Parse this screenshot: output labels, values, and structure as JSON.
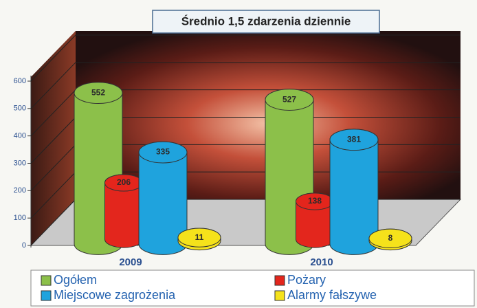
{
  "chart_data": {
    "type": "bar3d",
    "title": "Średnio 1,5 zdarzenia dziennie",
    "categories": [
      "2009",
      "2010"
    ],
    "series": [
      {
        "name": "Ogółem",
        "color": "#8cc04a",
        "values": [
          552,
          527
        ]
      },
      {
        "name": "Pożary",
        "color": "#e3261d",
        "values": [
          206,
          138
        ]
      },
      {
        "name": "Miejscowe zagrożenia",
        "color": "#1fa3dd",
        "values": [
          335,
          381
        ]
      },
      {
        "name": "Alarmy fałszywe",
        "color": "#f5e21c",
        "values": [
          11,
          8
        ]
      }
    ],
    "ylim": [
      0,
      600
    ],
    "yticks": [
      0,
      100,
      200,
      300,
      400,
      500,
      600
    ],
    "grid": true
  }
}
